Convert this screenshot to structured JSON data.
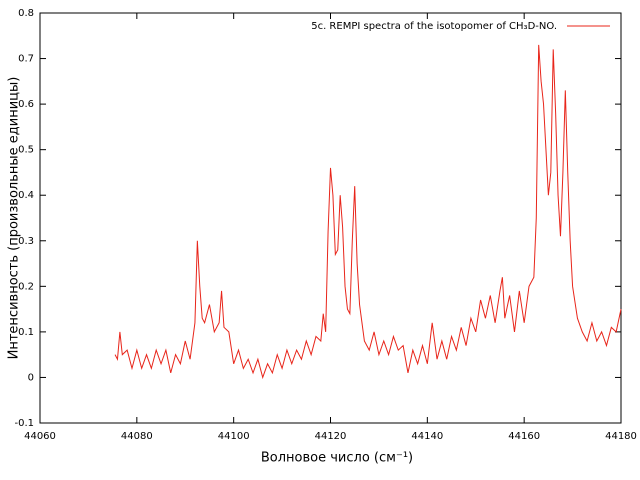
{
  "chart_data": {
    "type": "line",
    "xlabel": "Волновое число (см⁻¹)",
    "ylabel": "Интенсивность (произвольные единицы)",
    "xlim": [
      44060,
      44180
    ],
    "xticks": [
      44060,
      44080,
      44100,
      44120,
      44140,
      44160,
      44180
    ],
    "ylim": [
      -0.1,
      0.8
    ],
    "yticks": [
      -0.1,
      0,
      0.1,
      0.2,
      0.3,
      0.4,
      0.5,
      0.6,
      0.7,
      0.8
    ],
    "legend": "top-right",
    "x": [
      44075.5,
      44076,
      44076.5,
      44077,
      44078,
      44079,
      44080,
      44081,
      44082,
      44083,
      44084,
      44085,
      44086,
      44087,
      44088,
      44089,
      44090,
      44091,
      44092,
      44092.5,
      44093,
      44093.5,
      44094,
      44095,
      44096,
      44097,
      44097.5,
      44098,
      44099,
      44100,
      44101,
      44102,
      44103,
      44104,
      44105,
      44106,
      44107,
      44108,
      44109,
      44110,
      44111,
      44112,
      44113,
      44114,
      44115,
      44116,
      44117,
      44118,
      44118.5,
      44119,
      44119.5,
      44120,
      44120.5,
      44121,
      44121.5,
      44122,
      44122.5,
      44123,
      44123.5,
      44124,
      44124.5,
      44125,
      44125.5,
      44126,
      44127,
      44128,
      44129,
      44130,
      44131,
      44132,
      44133,
      44134,
      44135,
      44136,
      44137,
      44138,
      44139,
      44140,
      44141,
      44142,
      44143,
      44144,
      44145,
      44146,
      44147,
      44148,
      44149,
      44150,
      44151,
      44152,
      44153,
      44154,
      44155,
      44155.5,
      44156,
      44157,
      44158,
      44159,
      44160,
      44161,
      44162,
      44162.5,
      44163,
      44163.5,
      44164,
      44164.5,
      44165,
      44165.5,
      44166,
      44166.5,
      44167,
      44167.5,
      44168,
      44168.5,
      44169,
      44169.5,
      44170,
      44171,
      44172,
      44173,
      44174,
      44175,
      44176,
      44177,
      44178,
      44179,
      44180
    ],
    "series": [
      {
        "name": "5c. REMPI spectra of the isotopomer of CH₃D-NO.",
        "color": "#e8251a",
        "values": [
          0.05,
          0.04,
          0.1,
          0.05,
          0.06,
          0.02,
          0.06,
          0.02,
          0.05,
          0.02,
          0.06,
          0.03,
          0.06,
          0.01,
          0.05,
          0.03,
          0.08,
          0.04,
          0.12,
          0.3,
          0.2,
          0.13,
          0.12,
          0.16,
          0.1,
          0.12,
          0.19,
          0.11,
          0.1,
          0.03,
          0.06,
          0.02,
          0.04,
          0.01,
          0.04,
          0.0,
          0.03,
          0.01,
          0.05,
          0.02,
          0.06,
          0.03,
          0.06,
          0.04,
          0.08,
          0.05,
          0.09,
          0.08,
          0.14,
          0.1,
          0.32,
          0.46,
          0.4,
          0.27,
          0.28,
          0.4,
          0.33,
          0.2,
          0.15,
          0.14,
          0.3,
          0.42,
          0.25,
          0.16,
          0.08,
          0.06,
          0.1,
          0.05,
          0.08,
          0.05,
          0.09,
          0.06,
          0.07,
          0.01,
          0.06,
          0.03,
          0.07,
          0.03,
          0.12,
          0.04,
          0.08,
          0.04,
          0.09,
          0.06,
          0.11,
          0.07,
          0.13,
          0.1,
          0.17,
          0.13,
          0.18,
          0.12,
          0.19,
          0.22,
          0.13,
          0.18,
          0.1,
          0.19,
          0.12,
          0.2,
          0.22,
          0.35,
          0.73,
          0.65,
          0.6,
          0.5,
          0.4,
          0.45,
          0.72,
          0.58,
          0.4,
          0.31,
          0.45,
          0.63,
          0.45,
          0.3,
          0.2,
          0.13,
          0.1,
          0.08,
          0.12,
          0.08,
          0.1,
          0.07,
          0.11,
          0.1,
          0.15
        ]
      }
    ]
  }
}
